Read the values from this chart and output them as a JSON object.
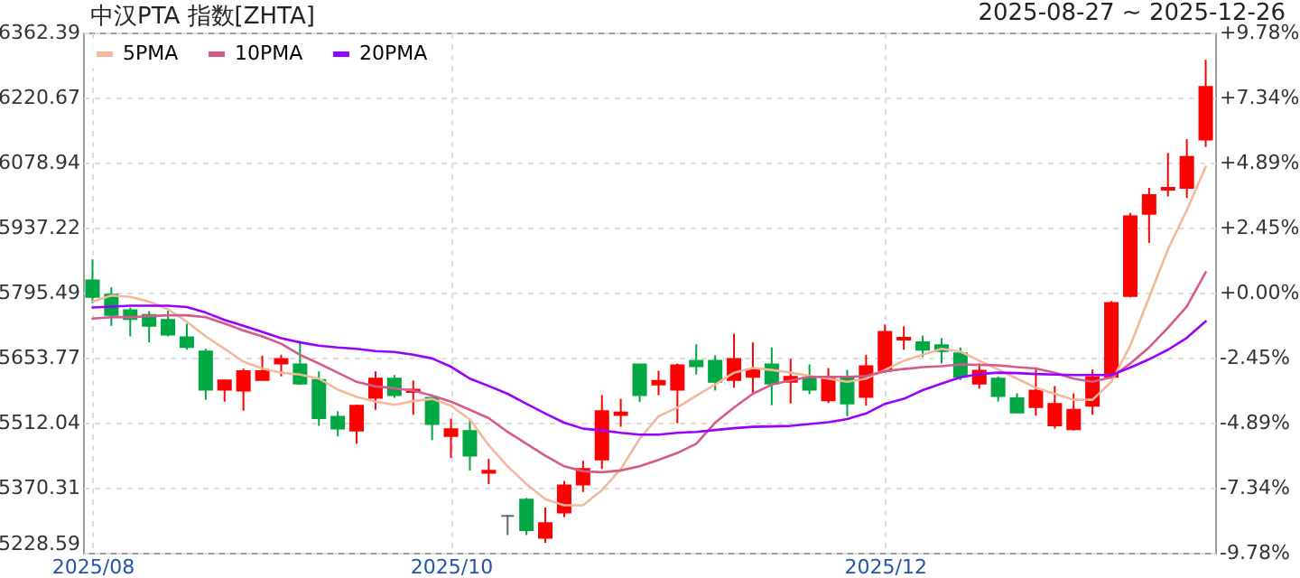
{
  "chart_data": {
    "type": "candlestick",
    "title": "中汉PTA 指数[ZHTA]",
    "subtitle": "2025-08-27 ~ 2025-12-26",
    "categories": [
      "2025/08",
      null,
      null,
      null,
      null,
      null,
      null,
      null,
      null,
      null,
      null,
      null,
      null,
      null,
      null,
      null,
      null,
      null,
      null,
      "2025/10",
      null,
      null,
      null,
      null,
      null,
      null,
      null,
      null,
      null,
      null,
      null,
      null,
      null,
      null,
      null,
      null,
      null,
      null,
      null,
      null,
      null,
      null,
      "2025/12",
      null,
      null,
      null,
      null,
      null,
      null,
      null,
      null,
      null,
      null,
      null,
      null,
      null,
      null,
      null,
      null,
      null
    ],
    "ohlc": [
      [
        5822,
        5868,
        5772,
        5786
      ],
      [
        5791,
        5807,
        5723,
        5747
      ],
      [
        5757,
        5763,
        5700,
        5738
      ],
      [
        5747,
        5755,
        5687,
        5723
      ],
      [
        5736,
        5756,
        5700,
        5704
      ],
      [
        5698,
        5728,
        5671,
        5677
      ],
      [
        5667,
        5673,
        5562,
        5584
      ],
      [
        5584,
        5606,
        5558,
        5604
      ],
      [
        5582,
        5630,
        5538,
        5624
      ],
      [
        5605,
        5658,
        5605,
        5624
      ],
      [
        5641,
        5660,
        5613,
        5651
      ],
      [
        5639,
        5690,
        5595,
        5597
      ],
      [
        5605,
        5624,
        5505,
        5522
      ],
      [
        5525,
        5537,
        5482,
        5499
      ],
      [
        5495,
        5551,
        5466,
        5549
      ],
      [
        5566,
        5624,
        5540,
        5608
      ],
      [
        5608,
        5616,
        5566,
        5572
      ],
      [
        5579,
        5604,
        5529,
        5584
      ],
      [
        5566,
        5571,
        5474,
        5509
      ],
      [
        5483,
        5521,
        5435,
        5498
      ],
      [
        5494,
        5516,
        5408,
        5440
      ],
      [
        5403,
        5433,
        5378,
        5407
      ],
      [
        5309,
        5311,
        5267,
        5309
      ],
      [
        5344,
        5348,
        5267,
        5278
      ],
      [
        5261,
        5327,
        5250,
        5293
      ],
      [
        5316,
        5385,
        5306,
        5375
      ],
      [
        5377,
        5429,
        5361,
        5411
      ],
      [
        5432,
        5572,
        5411,
        5537
      ],
      [
        5529,
        5564,
        5503,
        5534
      ],
      [
        5639,
        5639,
        5557,
        5572
      ],
      [
        5595,
        5625,
        5572,
        5603
      ],
      [
        5584,
        5641,
        5511,
        5637
      ],
      [
        5647,
        5683,
        5617,
        5635
      ],
      [
        5647,
        5659,
        5582,
        5601
      ],
      [
        5605,
        5706,
        5588,
        5651
      ],
      [
        5612,
        5687,
        5575,
        5627
      ],
      [
        5639,
        5676,
        5550,
        5597
      ],
      [
        5601,
        5651,
        5554,
        5612
      ],
      [
        5610,
        5639,
        5574,
        5584
      ],
      [
        5561,
        5631,
        5555,
        5608
      ],
      [
        5612,
        5627,
        5526,
        5554
      ],
      [
        5568,
        5660,
        5549,
        5635
      ],
      [
        5625,
        5726,
        5621,
        5710
      ],
      [
        5693,
        5722,
        5671,
        5697
      ],
      [
        5687,
        5702,
        5655,
        5671
      ],
      [
        5681,
        5696,
        5641,
        5668
      ],
      [
        5663,
        5676,
        5605,
        5612
      ],
      [
        5597,
        5641,
        5586,
        5625
      ],
      [
        5608,
        5613,
        5558,
        5570
      ],
      [
        5565,
        5576,
        5534,
        5534
      ],
      [
        5546,
        5628,
        5527,
        5582
      ],
      [
        5506,
        5592,
        5499,
        5553
      ],
      [
        5498,
        5576,
        5495,
        5540
      ],
      [
        5549,
        5628,
        5529,
        5611
      ],
      [
        5612,
        5777,
        5608,
        5773
      ],
      [
        5788,
        5969,
        5785,
        5962
      ],
      [
        5967,
        6024,
        5904,
        6008
      ],
      [
        6020,
        6100,
        6005,
        6024
      ],
      [
        6024,
        6130,
        6002,
        6091
      ],
      [
        6129,
        6303,
        6113,
        6244
      ]
    ],
    "colors": [
      "#00a843",
      "#00a843",
      "#00a843",
      "#00a843",
      "#00a843",
      "#00a843",
      "#00a843",
      "#ff0000",
      "#ff0000",
      "#ff0000",
      "#ff0000",
      "#00a843",
      "#00a843",
      "#00a843",
      "#ff0000",
      "#ff0000",
      "#00a843",
      "#ff0000",
      "#00a843",
      "#ff0000",
      "#00a843",
      "#ff0000",
      "#666666",
      "#00a843",
      "#ff0000",
      "#ff0000",
      "#ff0000",
      "#ff0000",
      "#ff0000",
      "#00a843",
      "#ff0000",
      "#ff0000",
      "#00a843",
      "#00a843",
      "#ff0000",
      "#ff0000",
      "#00a843",
      "#ff0000",
      "#00a843",
      "#ff0000",
      "#00a843",
      "#ff0000",
      "#ff0000",
      "#ff0000",
      "#00a843",
      "#00a843",
      "#00a843",
      "#ff0000",
      "#00a843",
      "#00a843",
      "#ff0000",
      "#ff0000",
      "#ff0000",
      "#ff0000",
      "#ff0000",
      "#ff0000",
      "#ff0000",
      "#ff0000",
      "#ff0000",
      "#ff0000"
    ],
    "series": [
      {
        "name": "5PMA",
        "type": "line",
        "color": "#f5b89a",
        "values": [
          5776,
          5789,
          5786,
          5776,
          5759,
          5732,
          5700,
          5673,
          5645,
          5630,
          5621,
          5617,
          5608,
          5584,
          5568,
          5558,
          5551,
          5559,
          5564,
          5549,
          5519,
          5463,
          5417,
          5378,
          5345,
          5332,
          5332,
          5365,
          5411,
          5477,
          5526,
          5545,
          5571,
          5595,
          5621,
          5631,
          5627,
          5621,
          5614,
          5608,
          5601,
          5608,
          5627,
          5647,
          5660,
          5673,
          5667,
          5647,
          5628,
          5608,
          5588,
          5575,
          5562,
          5562,
          5601,
          5680,
          5785,
          5890,
          5975,
          6070
        ]
      },
      {
        "name": "10PMA",
        "type": "line",
        "color": "#d65a8a",
        "values": [
          5739,
          5742,
          5742,
          5744,
          5746,
          5746,
          5742,
          5728,
          5713,
          5700,
          5684,
          5660,
          5641,
          5621,
          5601,
          5591,
          5587,
          5582,
          5571,
          5558,
          5540,
          5522,
          5492,
          5466,
          5440,
          5417,
          5406,
          5404,
          5408,
          5417,
          5431,
          5446,
          5466,
          5512,
          5545,
          5575,
          5595,
          5604,
          5612,
          5612,
          5612,
          5614,
          5624,
          5629,
          5633,
          5635,
          5639,
          5638,
          5637,
          5633,
          5630,
          5621,
          5608,
          5601,
          5611,
          5641,
          5676,
          5719,
          5765,
          5840
        ]
      },
      {
        "name": "20PMA",
        "type": "line",
        "color": "#9900ff",
        "values": [
          5763,
          5765,
          5767,
          5767,
          5767,
          5764,
          5752,
          5736,
          5723,
          5710,
          5696,
          5687,
          5680,
          5676,
          5673,
          5668,
          5666,
          5660,
          5652,
          5634,
          5608,
          5592,
          5575,
          5553,
          5532,
          5512,
          5499,
          5495,
          5490,
          5486,
          5486,
          5490,
          5492,
          5496,
          5500,
          5503,
          5504,
          5505,
          5509,
          5513,
          5520,
          5532,
          5553,
          5564,
          5583,
          5597,
          5611,
          5618,
          5621,
          5620,
          5618,
          5617,
          5616,
          5616,
          5616,
          5632,
          5650,
          5671,
          5697,
          5733
        ]
      }
    ],
    "ylim": [
      5228.59,
      6362.39
    ],
    "yticks": [
      5228.59,
      5370.31,
      5512.04,
      5653.77,
      5795.49,
      5937.22,
      6078.94,
      6220.67,
      6362.39
    ],
    "y2lim": [
      -9.78,
      9.78
    ],
    "y2ticks": [
      {
        "value": -9.78,
        "label": "-9.78%"
      },
      {
        "value": -7.34,
        "label": "-7.34%"
      },
      {
        "value": -4.89,
        "label": "-4.89%"
      },
      {
        "value": -2.45,
        "label": "-2.45%"
      },
      {
        "value": 0,
        "label": "+0.00%"
      },
      {
        "value": 2.45,
        "label": "+2.45%"
      },
      {
        "value": 4.89,
        "label": "+4.89%"
      },
      {
        "value": 7.34,
        "label": "+7.34%"
      },
      {
        "value": 9.78,
        "label": "+9.78%"
      }
    ],
    "grid": true,
    "legend": "top left"
  }
}
